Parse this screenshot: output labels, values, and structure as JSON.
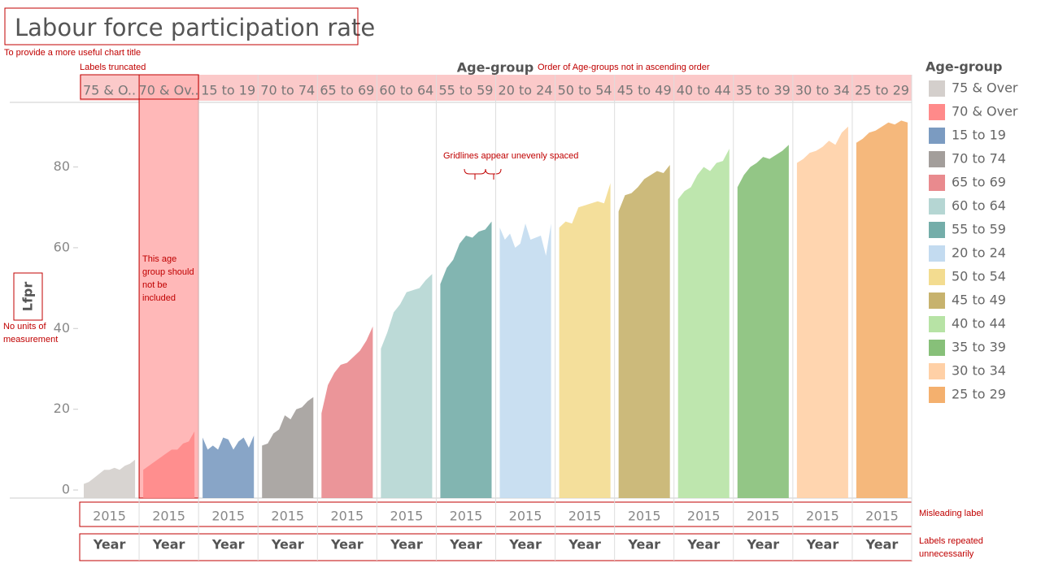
{
  "chart_data": {
    "type": "area",
    "title": "Labour force participation rate",
    "y_label": "Lfpr",
    "facet_label": "Age-group",
    "legend_title": "Age-group",
    "x_tick_label": "2015",
    "x_label": "Year",
    "panel_headers": [
      "75 & O..",
      "70 & Ov..",
      "15 to 19",
      "70 to 74",
      "65 to 69",
      "60 to 64",
      "55 to 59",
      "20 to 24",
      "50 to 54",
      "45 to 49",
      "40 to 44",
      "35 to 39",
      "30 to 34",
      "25 to 29"
    ],
    "series": [
      {
        "name": "75 & Over",
        "color": "#d4cfcc",
        "values": [
          1.5,
          2,
          3,
          4,
          5,
          5,
          5.5,
          5,
          6,
          6.5,
          7.5
        ]
      },
      {
        "name": "70 & Over",
        "color": "#ff8a8a",
        "values": [
          5,
          6,
          7,
          8,
          9,
          10,
          10,
          11.5,
          12,
          14.5
        ]
      },
      {
        "name": "15 to 19",
        "color": "#7b9bc1",
        "values": [
          13,
          10,
          11,
          10,
          13,
          12.5,
          10,
          12,
          13,
          10.5,
          13.5
        ]
      },
      {
        "name": "70 to 74",
        "color": "#a39e9b",
        "values": [
          11,
          11.5,
          14,
          15,
          18.5,
          17.5,
          20,
          20.5,
          22,
          23
        ]
      },
      {
        "name": "65 to 69",
        "color": "#e98a8e",
        "values": [
          19,
          26,
          29,
          31,
          31.5,
          33,
          34.5,
          37,
          40.5
        ]
      },
      {
        "name": "60 to 64",
        "color": "#b5d6d3",
        "values": [
          35,
          39,
          44,
          46,
          49,
          49.5,
          50,
          52,
          53.5
        ]
      },
      {
        "name": "55 to 59",
        "color": "#74ada9",
        "values": [
          51,
          55,
          57,
          61,
          63,
          62.5,
          64,
          64.5,
          66.5
        ]
      },
      {
        "name": "20 to 24",
        "color": "#c3dbf0",
        "values": [
          65,
          62,
          63.5,
          60,
          61,
          66,
          62,
          62.5,
          63,
          58,
          66
        ]
      },
      {
        "name": "50 to 54",
        "color": "#f3dc90",
        "values": [
          65,
          66.5,
          66,
          70,
          70.5,
          71,
          71.5,
          71,
          76
        ]
      },
      {
        "name": "45 to 49",
        "color": "#c7b26d",
        "values": [
          69,
          73,
          73.5,
          75,
          77,
          78,
          79,
          78.5,
          80.5
        ]
      },
      {
        "name": "40 to 44",
        "color": "#b7e3a5",
        "values": [
          72,
          74,
          75,
          78,
          80,
          79,
          81,
          81.5,
          84.5
        ]
      },
      {
        "name": "35 to 39",
        "color": "#87c079",
        "values": [
          75,
          78,
          80,
          81,
          82.5,
          82,
          83,
          84,
          85.5
        ]
      },
      {
        "name": "30 to 34",
        "color": "#ffd0a6",
        "values": [
          81,
          82,
          83.5,
          84,
          85,
          86.5,
          85.5,
          88.5,
          90
        ]
      },
      {
        "name": "25 to 29",
        "color": "#f4b06e",
        "values": [
          86,
          87,
          88.5,
          89,
          90,
          91,
          90.5,
          91.5,
          91
        ]
      }
    ],
    "ylim": [
      -2,
      96
    ],
    "yticks": [
      0,
      20,
      40,
      60,
      80
    ],
    "annotations": [
      "To provide a more useful chart title",
      "Labels truncated",
      "Order of Age-groups not in ascending order",
      "Gridlines appear unevenly spaced",
      "This age group should not be included",
      "No units of measurement",
      "Misleading label",
      "Labels repeated unnecessarily"
    ]
  }
}
